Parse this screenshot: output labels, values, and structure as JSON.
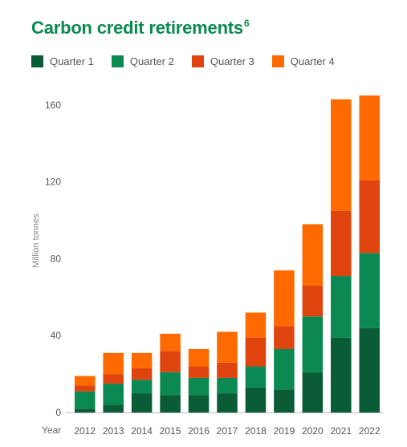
{
  "header": {
    "title": "Carbon credit retirements",
    "title_sup": "6"
  },
  "chart_data": {
    "type": "bar",
    "stacked": true,
    "title": "Carbon credit retirements",
    "ylabel": "Million tonnes",
    "xlabel": "Year",
    "ylim": [
      0,
      170
    ],
    "yticks": [
      0,
      40,
      80,
      120,
      160
    ],
    "grid": false,
    "legend_position": "top",
    "categories": [
      "2012",
      "2013",
      "2014",
      "2015",
      "2016",
      "2017",
      "2018",
      "2019",
      "2020",
      "2021",
      "2022"
    ],
    "series": [
      {
        "name": "Quarter 1",
        "color": "#0a5c36",
        "values": [
          2,
          4,
          10,
          9,
          9,
          10,
          13,
          12,
          21,
          39,
          44
        ]
      },
      {
        "name": "Quarter 2",
        "color": "#0a8a52",
        "values": [
          9,
          11,
          7,
          12,
          9,
          8,
          11,
          21,
          29,
          32,
          39
        ]
      },
      {
        "name": "Quarter 3",
        "color": "#e0440e",
        "values": [
          3,
          5,
          6,
          11,
          6,
          8,
          15,
          12,
          16,
          34,
          38
        ]
      },
      {
        "name": "Quarter 4",
        "color": "#ff6a00",
        "values": [
          5,
          11,
          8,
          9,
          9,
          16,
          13,
          29,
          32,
          58,
          44
        ]
      }
    ]
  }
}
